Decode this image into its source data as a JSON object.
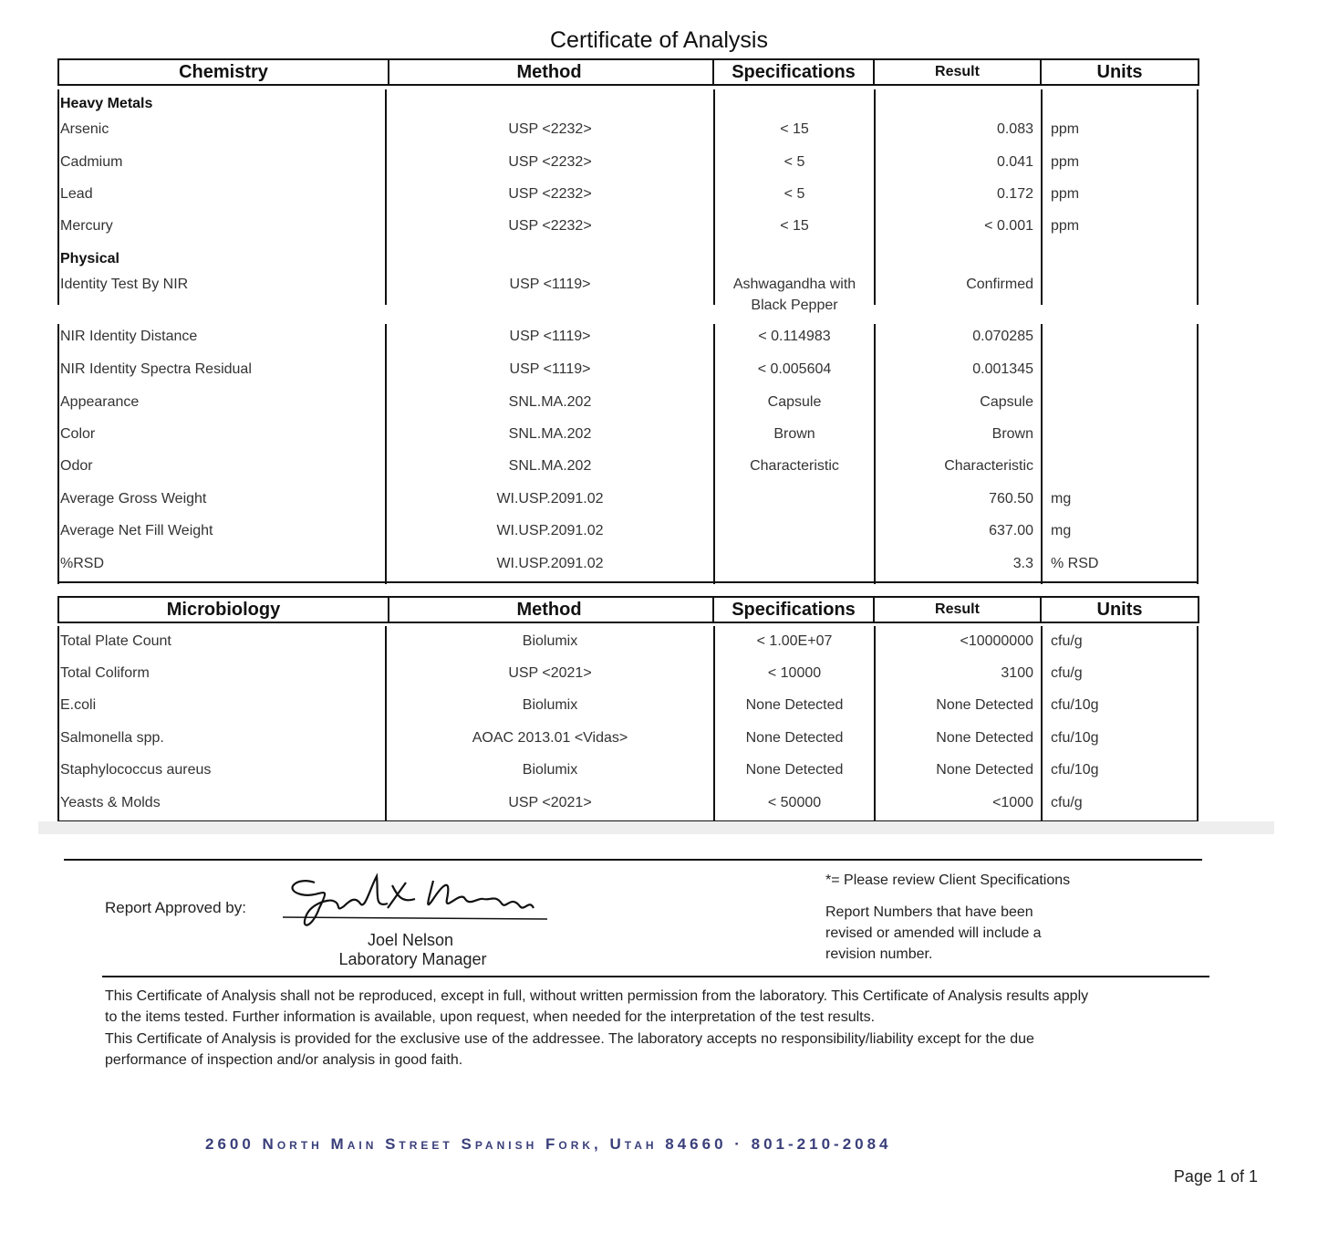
{
  "title": "Certificate of Analysis",
  "chemistry": {
    "headers": [
      "Chemistry",
      "Method",
      "Specifications",
      "Result",
      "Units"
    ],
    "rows": [
      {
        "name": "Heavy Metals",
        "section": true
      },
      {
        "name": "Arsenic",
        "method": "USP <2232>",
        "spec": "< 15",
        "result": "0.083",
        "unit": "ppm"
      },
      {
        "name": "Cadmium",
        "method": "USP <2232>",
        "spec": "< 5",
        "result": "0.041",
        "unit": "ppm"
      },
      {
        "name": "Lead",
        "method": "USP <2232>",
        "spec": "< 5",
        "result": "0.172",
        "unit": "ppm"
      },
      {
        "name": "Mercury",
        "method": "USP <2232>",
        "spec": "< 15",
        "result": "< 0.001",
        "unit": "ppm"
      },
      {
        "name": "Physical",
        "section": true
      },
      {
        "name": "Identity Test By NIR",
        "method": "USP <1119>",
        "spec": "Ashwagandha with",
        "spec2": "Black Pepper",
        "result": "Confirmed",
        "unit": ""
      },
      {
        "name": "NIR Identity Distance",
        "method": "USP <1119>",
        "spec": "< 0.114983",
        "result": "0.070285",
        "unit": ""
      },
      {
        "name": "NIR Identity Spectra Residual",
        "method": "USP <1119>",
        "spec": "< 0.005604",
        "result": "0.001345",
        "unit": ""
      },
      {
        "name": "Appearance",
        "method": "SNL.MA.202",
        "spec": "Capsule",
        "result": "Capsule",
        "unit": ""
      },
      {
        "name": "Color",
        "method": "SNL.MA.202",
        "spec": "Brown",
        "result": "Brown",
        "unit": ""
      },
      {
        "name": "Odor",
        "method": "SNL.MA.202",
        "spec": "Characteristic",
        "result": "Characteristic",
        "unit": ""
      },
      {
        "name": "Average Gross Weight",
        "method": "WI.USP.2091.02",
        "spec": "",
        "result": "760.50",
        "unit": "mg"
      },
      {
        "name": "Average Net Fill Weight",
        "method": "WI.USP.2091.02",
        "spec": "",
        "result": "637.00",
        "unit": "mg"
      },
      {
        "name": "%RSD",
        "method": "WI.USP.2091.02",
        "spec": "",
        "result": "3.3",
        "unit": "% RSD"
      }
    ]
  },
  "microbiology": {
    "headers": [
      "Microbiology",
      "Method",
      "Specifications",
      "Result",
      "Units"
    ],
    "rows": [
      {
        "name": "Total Plate Count",
        "method": "Biolumix",
        "spec": "< 1.00E+07",
        "result": "<10000000",
        "unit": "cfu/g"
      },
      {
        "name": "Total Coliform",
        "method": "USP <2021>",
        "spec": "< 10000",
        "result": "3100",
        "unit": "cfu/g"
      },
      {
        "name": "E.coli",
        "method": "Biolumix",
        "spec": "None Detected",
        "result": "None Detected",
        "unit": "cfu/10g"
      },
      {
        "name": "Salmonella spp.",
        "method": "AOAC 2013.01 <Vidas>",
        "spec": "None Detected",
        "result": "None Detected",
        "unit": "cfu/10g"
      },
      {
        "name": "Staphylococcus aureus",
        "method": "Biolumix",
        "spec": "None Detected",
        "result": "None Detected",
        "unit": "cfu/10g"
      },
      {
        "name": "Yeasts & Molds",
        "method": "USP <2021>",
        "spec": "< 50000",
        "result": "<1000",
        "unit": "cfu/g"
      }
    ]
  },
  "approval": {
    "label": "Report Approved by:",
    "signature": "Joel L Nelson",
    "name": "Joel Nelson",
    "role": "Laboratory Manager"
  },
  "notes": {
    "client_spec": "*= Please review Client Specifications",
    "revision": [
      "Report Numbers that have been",
      "revised or amended will include a",
      "revision number."
    ]
  },
  "disclaimer": [
    "This Certificate of Analysis shall not be reproduced, except in full, without written permission from the laboratory. This Certificate of Analysis results apply",
    "to the items tested. Further information is available, upon request, when needed for the interpretation of the test results.",
    "This Certificate of Analysis is provided for the exclusive use of the addressee. The laboratory accepts no responsibility/liability except for the due",
    "performance of inspection and/or analysis in good faith."
  ],
  "address": "2600 North Main Street  Spanish Fork, Utah  84660 · 801-210-2084",
  "page": "Page 1 of 1",
  "colors": {
    "address": "#3a3f7a"
  }
}
